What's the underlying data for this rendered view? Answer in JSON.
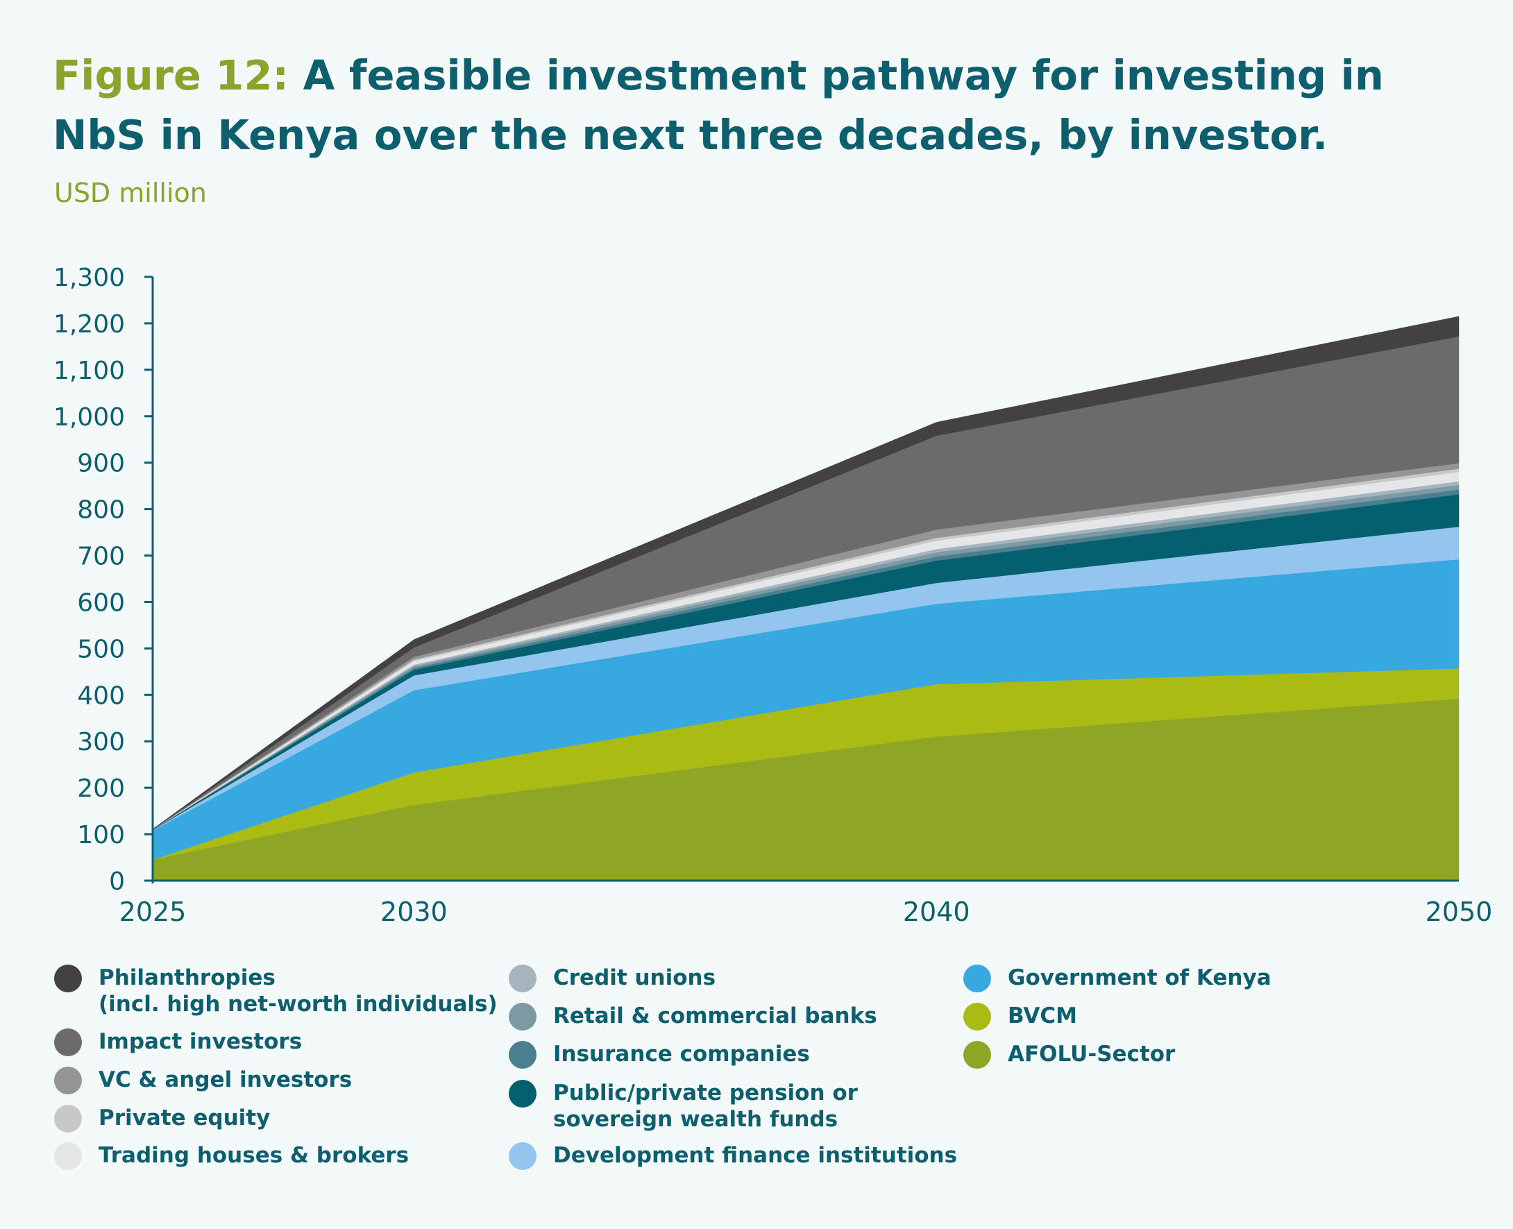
{
  "title_prefix": "Figure 12:",
  "title_main": "A feasible investment pathway for investing in NbS in Kenya over the next three decades, by investor.",
  "unit_label": "USD million",
  "chart_data": {
    "type": "area",
    "stacked": true,
    "x": [
      2025,
      2030,
      2040,
      2050
    ],
    "ylim": [
      0,
      1300
    ],
    "yticks": [
      "0",
      "100",
      "200",
      "300",
      "400",
      "500",
      "600",
      "700",
      "800",
      "900",
      "1,000",
      "1,100",
      "1,200",
      "1,300"
    ],
    "xticks": [
      "2025",
      "2030",
      "2040",
      "2050"
    ],
    "series": [
      {
        "name": "AFOLU-Sector",
        "color": "#8ea526",
        "values": [
          45,
          163,
          310,
          392
        ]
      },
      {
        "name": "BVCM",
        "color": "#aabb14",
        "values": [
          0,
          70,
          113,
          65
        ]
      },
      {
        "name": "Government of Kenya",
        "color": "#38a8e0",
        "values": [
          63,
          177,
          173,
          235
        ]
      },
      {
        "name": "Development finance institutions",
        "color": "#93c5ee",
        "values": [
          1,
          32,
          45,
          70
        ]
      },
      {
        "name": "Public/private pension or\nsovereign wealth funds",
        "color": "#04606e",
        "values": [
          1,
          12,
          48,
          70
        ]
      },
      {
        "name": "Insurance companies",
        "color": "#4a7f90",
        "values": [
          0,
          4,
          9,
          10
        ]
      },
      {
        "name": "Retail & commercial banks",
        "color": "#7c99a4",
        "values": [
          0,
          4,
          9,
          10
        ]
      },
      {
        "name": "Credit unions",
        "color": "#a6b5bd",
        "values": [
          0,
          3,
          7,
          8
        ]
      },
      {
        "name": "Trading houses & brokers",
        "color": "#e4e6e7",
        "values": [
          0,
          8,
          18,
          20
        ]
      },
      {
        "name": "Private equity",
        "color": "#c8c8c8",
        "values": [
          0,
          3,
          6,
          7
        ]
      },
      {
        "name": "VC & angel investors",
        "color": "#959595",
        "values": [
          0,
          6,
          18,
          12
        ]
      },
      {
        "name": "Impact investors",
        "color": "#6c6a6b",
        "values": [
          0,
          20,
          202,
          273
        ]
      },
      {
        "name": "Philanthropies\n(incl. high net-worth individuals)",
        "color": "#434142",
        "values": [
          1,
          17,
          29,
          43
        ]
      }
    ]
  },
  "legend": {
    "col1": [
      {
        "label": "Philanthropies\n(incl. high net-worth individuals)",
        "color": "#434142"
      },
      {
        "label": "Impact investors",
        "color": "#6c6a6b"
      },
      {
        "label": "VC & angel investors",
        "color": "#959595"
      },
      {
        "label": "Private equity",
        "color": "#c8c8c8"
      },
      {
        "label": "Trading houses & brokers",
        "color": "#e4e6e7"
      }
    ],
    "col2": [
      {
        "label": "Credit unions",
        "color": "#a6b5bd"
      },
      {
        "label": "Retail & commercial banks",
        "color": "#7c99a4"
      },
      {
        "label": "Insurance companies",
        "color": "#4a7f90"
      },
      {
        "label": "Public/private pension or\nsovereign wealth funds",
        "color": "#04606e"
      },
      {
        "label": "Development finance institutions",
        "color": "#93c5ee"
      }
    ],
    "col3": [
      {
        "label": "Government of Kenya",
        "color": "#38a8e0"
      },
      {
        "label": "BVCM",
        "color": "#aabb14"
      },
      {
        "label": "AFOLU-Sector",
        "color": "#8ea526"
      }
    ]
  }
}
